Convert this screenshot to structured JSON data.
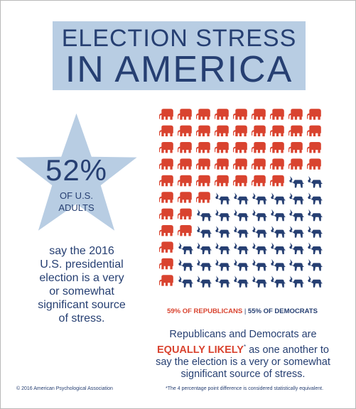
{
  "title_line1": "ELECTION STRESS",
  "title_line2": "IN AMERICA",
  "star": {
    "percent": "52%",
    "sub_line1": "OF U.S.",
    "sub_line2": "ADULTS"
  },
  "description_lines": [
    "say the 2016",
    "U.S. presidential",
    "election is a very",
    "or somewhat",
    "significant source",
    "of stress."
  ],
  "pictogram": {
    "columns": 9,
    "rows": 11,
    "column_fill": [
      {
        "elephants": 11,
        "donkeys": 0
      },
      {
        "elephants": 8,
        "donkeys": 3
      },
      {
        "elephants": 6,
        "donkeys": 5
      },
      {
        "elephants": 5,
        "donkeys": 6
      },
      {
        "elephants": 5,
        "donkeys": 6
      },
      {
        "elephants": 5,
        "donkeys": 6
      },
      {
        "elephants": 5,
        "donkeys": 6
      },
      {
        "elephants": 4,
        "donkeys": 7
      },
      {
        "elephants": 4,
        "donkeys": 7
      }
    ]
  },
  "legend": {
    "republicans": "59% OF REPUBLICANS",
    "separator": "|",
    "democrats": "55% OF DEMOCRATS"
  },
  "statement": {
    "line1": "Republicans and Democrats are",
    "highlight": "EQUALLY LIKELY",
    "asterisk": "*",
    "line2_rest": " as one another to",
    "line3": "say the election is a very or somewhat",
    "line4": "significant source of stress."
  },
  "copyright": "© 2016 American Psychological Association",
  "footnote": "*The 4 percentage point difference is considered statistically equivalent.",
  "colors": {
    "navy": "#263f72",
    "red": "#d9432f",
    "banner": "#b8cde3",
    "star": "#b8cde3"
  }
}
